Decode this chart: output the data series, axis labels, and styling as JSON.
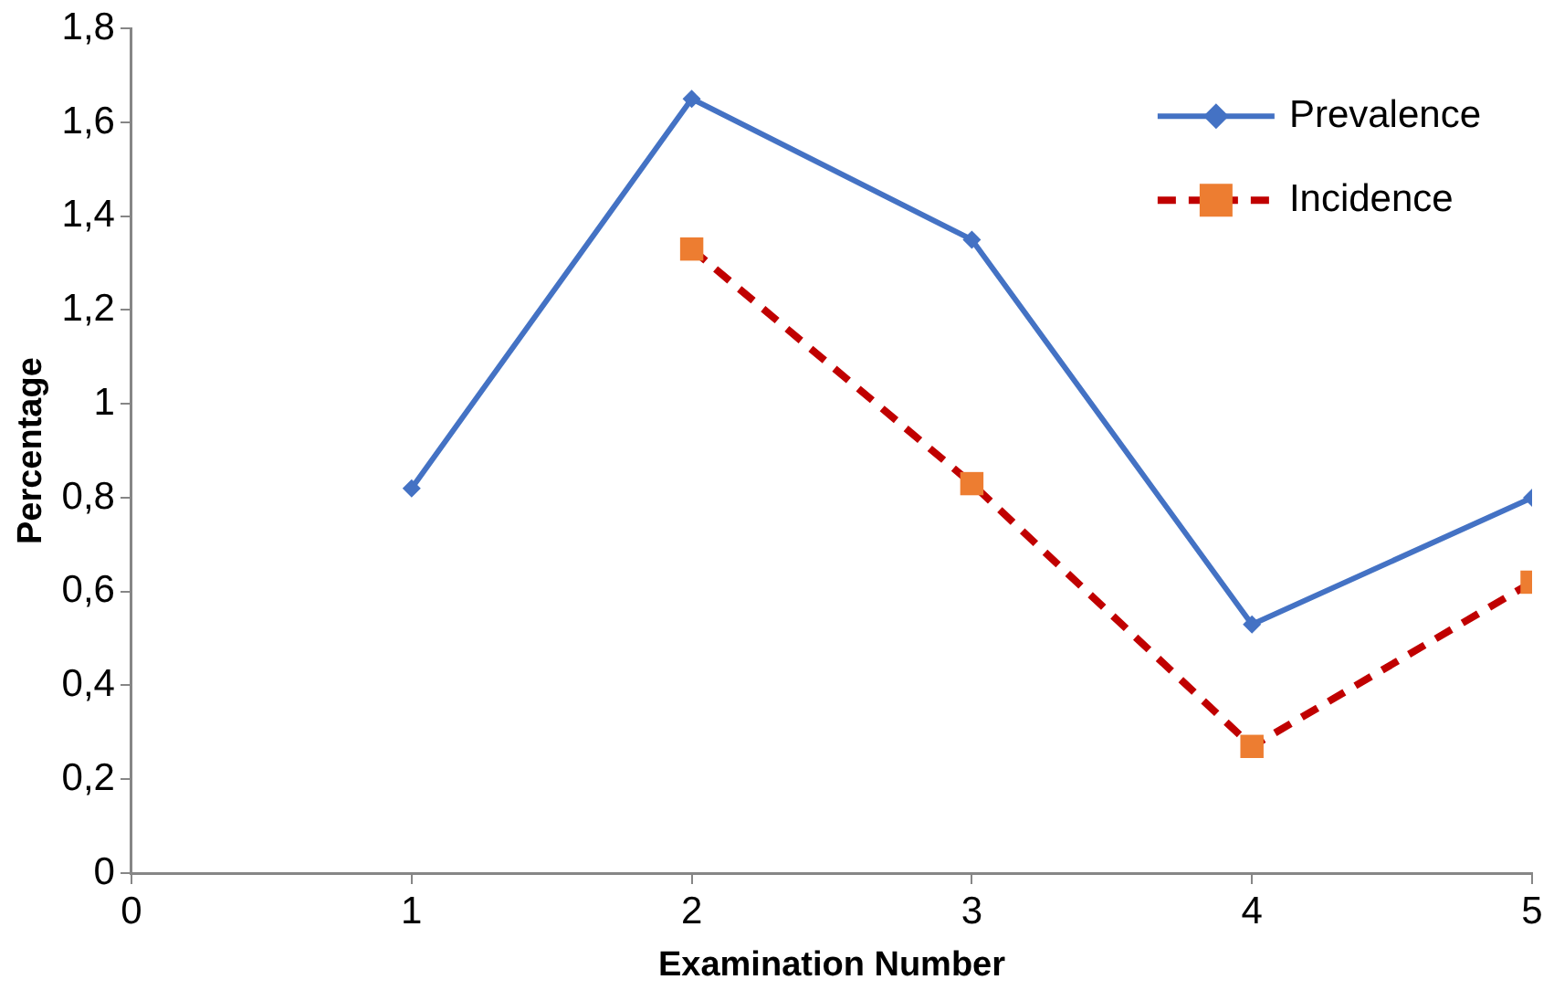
{
  "chart_data": {
    "type": "line",
    "xlabel": "Examination Number",
    "ylabel": "Percentage",
    "x": [
      1,
      2,
      3,
      4,
      5
    ],
    "series": [
      {
        "name": "Prevalence",
        "color": "#4472c4",
        "marker": "diamond",
        "line_style": "solid",
        "values": [
          0.82,
          1.65,
          1.35,
          0.53,
          0.8
        ]
      },
      {
        "name": "Incidence",
        "color": "#c00000",
        "colors": [
          null,
          "#ed7d31",
          "#ed7d31",
          "#ed7d31",
          "#ed7d31"
        ],
        "marker": "square",
        "line_style": "dashed",
        "values": [
          null,
          1.33,
          0.83,
          0.27,
          0.62
        ]
      }
    ],
    "xlim": [
      0,
      5
    ],
    "xticks": [
      0,
      1,
      2,
      3,
      4,
      5
    ],
    "ylim": [
      0,
      1.8
    ],
    "yticks": [
      0,
      {
        "value": 0.2,
        "label": "0,2"
      },
      {
        "value": 0.4,
        "label": "0,4"
      },
      {
        "value": 0.6,
        "label": "0,6"
      },
      {
        "value": 0.8,
        "label": "0,8"
      },
      1,
      {
        "value": 1.2,
        "label": "1,2"
      },
      {
        "value": 1.4,
        "label": "1,4"
      },
      {
        "value": 1.6,
        "label": "1,6"
      },
      {
        "value": 1.8,
        "label": "1,8"
      }
    ],
    "grid": false,
    "legend": "top right"
  }
}
